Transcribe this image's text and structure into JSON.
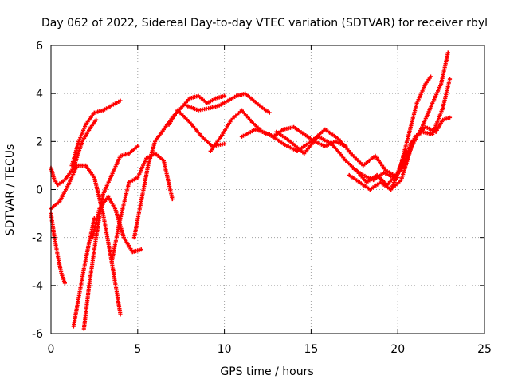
{
  "chart_data": {
    "type": "scatter",
    "title": "Day 062 of 2022, Sidereal Day-to-day VTEC variation (SDTVAR) for receiver rbyl",
    "xlabel": "GPS time / hours",
    "ylabel": "SDTVAR / TECUs",
    "xlim": [
      0,
      25
    ],
    "ylim": [
      -6,
      6
    ],
    "xticks": [
      0,
      5,
      10,
      15,
      20,
      25
    ],
    "yticks": [
      -6,
      -4,
      -2,
      0,
      2,
      4,
      6
    ],
    "xtick_labels": [
      "0",
      "5",
      "10",
      "15",
      "20",
      "25"
    ],
    "ytick_labels": [
      "-6",
      "-4",
      "-2",
      "0",
      "2",
      "4",
      "6"
    ],
    "grid": true,
    "marker": "+",
    "color": "#ff0000",
    "series": [
      {
        "x": [
          1.2,
          1.6,
          2.0,
          2.5,
          3.0,
          3.5,
          4.0
        ],
        "y": [
          1.0,
          2.0,
          2.7,
          3.2,
          3.3,
          3.5,
          3.7
        ]
      },
      {
        "x": [
          0.0,
          0.2,
          0.4,
          0.8,
          1.3,
          1.8,
          2.3,
          2.6
        ],
        "y": [
          0.9,
          0.4,
          0.2,
          0.4,
          0.9,
          2.0,
          2.6,
          2.9
        ]
      },
      {
        "x": [
          0.0,
          0.2,
          0.4,
          0.6,
          0.8
        ],
        "y": [
          -1.0,
          -2.0,
          -2.8,
          -3.5,
          -3.9
        ]
      },
      {
        "x": [
          0.0,
          0.5,
          1.0,
          1.5,
          2.0,
          2.5,
          3.0,
          3.5,
          4.0
        ],
        "y": [
          -0.8,
          -0.5,
          0.2,
          1.0,
          1.0,
          0.5,
          -1.0,
          -3.0,
          -5.2
        ]
      },
      {
        "x": [
          1.3,
          1.6,
          1.9,
          2.2,
          2.5
        ],
        "y": [
          -5.7,
          -4.5,
          -3.3,
          -2.2,
          -1.2
        ]
      },
      {
        "x": [
          1.9,
          2.2,
          2.6,
          3.0,
          3.5,
          4.0,
          4.5,
          5.0
        ],
        "y": [
          -5.8,
          -4.0,
          -2.0,
          -0.2,
          0.6,
          1.4,
          1.5,
          1.8
        ]
      },
      {
        "x": [
          2.4,
          2.8,
          3.3,
          3.7,
          4.2,
          4.7,
          5.2
        ],
        "y": [
          -2.0,
          -0.8,
          -0.3,
          -0.8,
          -2.0,
          -2.6,
          -2.5
        ]
      },
      {
        "x": [
          3.5,
          4.0,
          4.5,
          5.0,
          5.5,
          6.0,
          6.5,
          7.0
        ],
        "y": [
          -3.0,
          -1.2,
          0.3,
          0.5,
          1.3,
          1.5,
          1.2,
          -0.4
        ]
      },
      {
        "x": [
          4.8,
          5.2,
          5.6,
          6.0,
          6.5,
          7.0,
          7.5,
          8.0,
          8.5,
          9.0,
          9.5,
          10.0
        ],
        "y": [
          -2.0,
          -0.5,
          1.0,
          2.0,
          2.5,
          3.0,
          3.4,
          3.8,
          3.9,
          3.6,
          3.8,
          3.9
        ]
      },
      {
        "x": [
          6.8,
          7.3,
          8.0,
          8.7,
          9.3,
          10.0
        ],
        "y": [
          2.7,
          3.3,
          2.8,
          2.2,
          1.8,
          1.9
        ]
      },
      {
        "x": [
          7.8,
          8.5,
          9.2,
          9.7,
          10.2,
          10.7,
          11.2,
          11.7,
          12.2,
          12.6
        ],
        "y": [
          3.5,
          3.3,
          3.4,
          3.5,
          3.7,
          3.9,
          4.0,
          3.7,
          3.4,
          3.2
        ]
      },
      {
        "x": [
          9.2,
          9.8,
          10.4,
          11.0,
          11.6,
          12.2,
          12.8,
          13.4,
          14.0,
          14.6,
          15.2,
          15.8,
          16.4,
          17.0
        ],
        "y": [
          1.6,
          2.2,
          2.9,
          3.3,
          2.8,
          2.4,
          2.2,
          2.5,
          2.6,
          2.3,
          2.0,
          1.8,
          2.0,
          1.8
        ]
      },
      {
        "x": [
          11.0,
          11.8,
          12.6,
          13.4,
          14.2,
          15.0,
          15.8,
          16.6,
          17.3,
          18.0,
          18.7,
          19.3,
          20.0
        ],
        "y": [
          2.2,
          2.5,
          2.3,
          1.9,
          1.6,
          2.0,
          2.5,
          2.1,
          1.5,
          1.0,
          1.4,
          0.8,
          0.5
        ]
      },
      {
        "x": [
          13.0,
          13.8,
          14.6,
          15.4,
          16.2,
          17.0,
          17.6,
          18.2,
          18.8,
          19.4,
          20.0,
          20.5
        ],
        "y": [
          2.4,
          2.0,
          1.5,
          2.2,
          1.9,
          1.2,
          0.8,
          0.3,
          0.6,
          0.2,
          0.7,
          1.6
        ]
      },
      {
        "x": [
          17.2,
          17.8,
          18.4,
          19.0,
          19.6,
          20.2,
          20.8,
          21.4,
          22.0,
          22.5,
          22.9
        ],
        "y": [
          0.6,
          0.3,
          0.0,
          0.3,
          0.0,
          0.4,
          1.8,
          2.6,
          3.6,
          4.4,
          5.7
        ]
      },
      {
        "x": [
          17.4,
          18.0,
          18.6,
          19.2,
          19.8,
          20.4,
          21.0,
          21.6,
          22.2,
          22.6,
          23.0
        ],
        "y": [
          0.9,
          0.6,
          0.4,
          0.7,
          0.5,
          1.0,
          2.2,
          2.6,
          2.4,
          2.9,
          3.0
        ]
      },
      {
        "x": [
          19.6,
          20.1,
          20.6,
          21.1,
          21.6,
          21.9
        ],
        "y": [
          0.0,
          0.8,
          2.2,
          3.6,
          4.4,
          4.7
        ]
      },
      {
        "x": [
          20.3,
          20.8,
          21.4,
          22.0,
          22.6,
          23.0
        ],
        "y": [
          1.0,
          2.0,
          2.4,
          2.3,
          3.4,
          4.6
        ]
      }
    ]
  }
}
